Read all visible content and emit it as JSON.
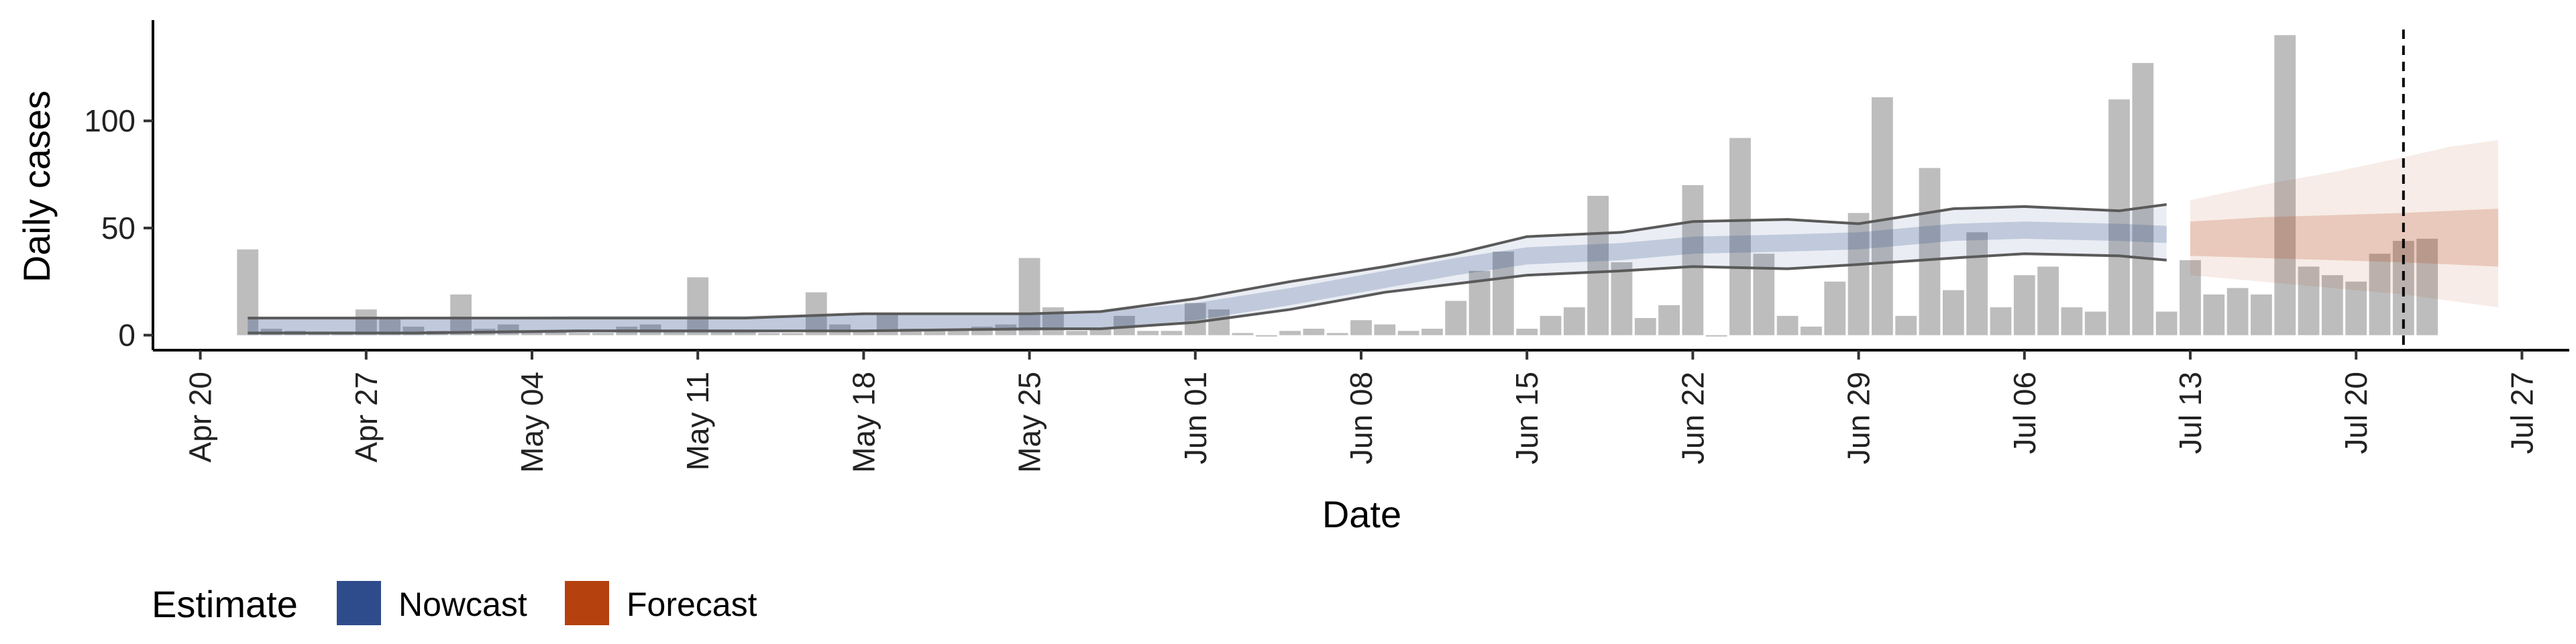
{
  "chart_data": {
    "type": "bar",
    "xlabel": "Date",
    "ylabel": "Daily cases",
    "x_ticks": [
      "Apr 20",
      "Apr 27",
      "May 04",
      "May 11",
      "May 18",
      "May 25",
      "Jun 01",
      "Jun 08",
      "Jun 15",
      "Jun 22",
      "Jun 29",
      "Jul 06",
      "Jul 13",
      "Jul 20",
      "Jul 27"
    ],
    "x_tick_dates": [
      "2020-04-20",
      "2020-04-27",
      "2020-05-04",
      "2020-05-11",
      "2020-05-18",
      "2020-05-25",
      "2020-06-01",
      "2020-06-08",
      "2020-06-15",
      "2020-06-22",
      "2020-06-29",
      "2020-07-06",
      "2020-07-13",
      "2020-07-20",
      "2020-07-27"
    ],
    "xlim": [
      "2020-04-18",
      "2020-07-29"
    ],
    "y_ticks": [
      0,
      50,
      100
    ],
    "ylim": [
      -7,
      147
    ],
    "dates": [
      "2020-04-22",
      "2020-04-23",
      "2020-04-24",
      "2020-04-25",
      "2020-04-26",
      "2020-04-27",
      "2020-04-28",
      "2020-04-29",
      "2020-04-30",
      "2020-05-01",
      "2020-05-02",
      "2020-05-03",
      "2020-05-04",
      "2020-05-05",
      "2020-05-06",
      "2020-05-07",
      "2020-05-08",
      "2020-05-09",
      "2020-05-10",
      "2020-05-11",
      "2020-05-12",
      "2020-05-13",
      "2020-05-14",
      "2020-05-15",
      "2020-05-16",
      "2020-05-17",
      "2020-05-18",
      "2020-05-19",
      "2020-05-20",
      "2020-05-21",
      "2020-05-22",
      "2020-05-23",
      "2020-05-24",
      "2020-05-25",
      "2020-05-26",
      "2020-05-27",
      "2020-05-28",
      "2020-05-29",
      "2020-05-30",
      "2020-05-31",
      "2020-06-01",
      "2020-06-02",
      "2020-06-03",
      "2020-06-04",
      "2020-06-05",
      "2020-06-06",
      "2020-06-07",
      "2020-06-08",
      "2020-06-09",
      "2020-06-10",
      "2020-06-11",
      "2020-06-12",
      "2020-06-13",
      "2020-06-14",
      "2020-06-15",
      "2020-06-16",
      "2020-06-17",
      "2020-06-18",
      "2020-06-19",
      "2020-06-20",
      "2020-06-21",
      "2020-06-22",
      "2020-06-23",
      "2020-06-24",
      "2020-06-25",
      "2020-06-26",
      "2020-06-27",
      "2020-06-28",
      "2020-06-29",
      "2020-06-30",
      "2020-07-01",
      "2020-07-02",
      "2020-07-03",
      "2020-07-04",
      "2020-07-05",
      "2020-07-06",
      "2020-07-07",
      "2020-07-08",
      "2020-07-09",
      "2020-07-10",
      "2020-07-11",
      "2020-07-12",
      "2020-07-13",
      "2020-07-14",
      "2020-07-15",
      "2020-07-16",
      "2020-07-17",
      "2020-07-18",
      "2020-07-19",
      "2020-07-20",
      "2020-07-21",
      "2020-07-22",
      "2020-07-23"
    ],
    "daily_cases": [
      40,
      3,
      2,
      1,
      1,
      12,
      8,
      4,
      2,
      19,
      3,
      5,
      2,
      2,
      1,
      1,
      4,
      5,
      2,
      27,
      2,
      2,
      1,
      1,
      20,
      5,
      2,
      10,
      3,
      2,
      2,
      4,
      5,
      36,
      13,
      2,
      3,
      9,
      2,
      2,
      15,
      12,
      1,
      0,
      2,
      3,
      1,
      7,
      5,
      2,
      3,
      16,
      30,
      39,
      3,
      9,
      13,
      65,
      34,
      8,
      14,
      70,
      0,
      92,
      38,
      9,
      4,
      25,
      57,
      111,
      9,
      78,
      21,
      48,
      13,
      28,
      32,
      13,
      11,
      110,
      127,
      11,
      35,
      19,
      22,
      19,
      140,
      32,
      28,
      25,
      38,
      44,
      45
    ],
    "reference_line_date": "2020-07-22",
    "series": [
      {
        "name": "Nowcast",
        "color": "#2e4c8c",
        "dates": [
          "2020-04-22",
          "2020-04-29",
          "2020-05-06",
          "2020-05-13",
          "2020-05-18",
          "2020-05-25",
          "2020-05-28",
          "2020-06-01",
          "2020-06-05",
          "2020-06-09",
          "2020-06-12",
          "2020-06-15",
          "2020-06-19",
          "2020-06-22",
          "2020-06-26",
          "2020-06-29",
          "2020-07-03",
          "2020-07-06",
          "2020-07-10",
          "2020-07-12"
        ],
        "median": [
          4,
          4,
          5,
          5,
          6,
          6,
          7,
          11,
          18,
          26,
          32,
          37,
          39,
          42,
          43,
          44,
          48,
          49,
          48,
          47
        ],
        "lower_90": [
          1,
          1,
          2,
          2,
          2,
          3,
          3,
          6,
          12,
          20,
          24,
          28,
          30,
          32,
          31,
          33,
          36,
          38,
          37,
          35
        ],
        "upper_90": [
          8,
          8,
          8,
          8,
          10,
          10,
          11,
          17,
          25,
          32,
          38,
          46,
          48,
          53,
          54,
          52,
          59,
          60,
          58,
          61
        ]
      },
      {
        "name": "Forecast",
        "color": "#b5410f",
        "dates": [
          "2020-07-13",
          "2020-07-16",
          "2020-07-19",
          "2020-07-22",
          "2020-07-24",
          "2020-07-26"
        ],
        "median": [
          45,
          45,
          44,
          45,
          45,
          45
        ],
        "lower_90": [
          28,
          25,
          22,
          19,
          16,
          13
        ],
        "upper_90": [
          63,
          70,
          76,
          83,
          88,
          91
        ],
        "lower_50": [
          37,
          36,
          35,
          34,
          33,
          32
        ],
        "upper_50": [
          53,
          55,
          56,
          57,
          58,
          59
        ]
      }
    ],
    "legend": {
      "title": "Estimate",
      "position": "bottom-left",
      "items": [
        {
          "label": "Nowcast",
          "color": "#2e4c8c"
        },
        {
          "label": "Forecast",
          "color": "#b5410f"
        }
      ]
    },
    "grid": false
  }
}
